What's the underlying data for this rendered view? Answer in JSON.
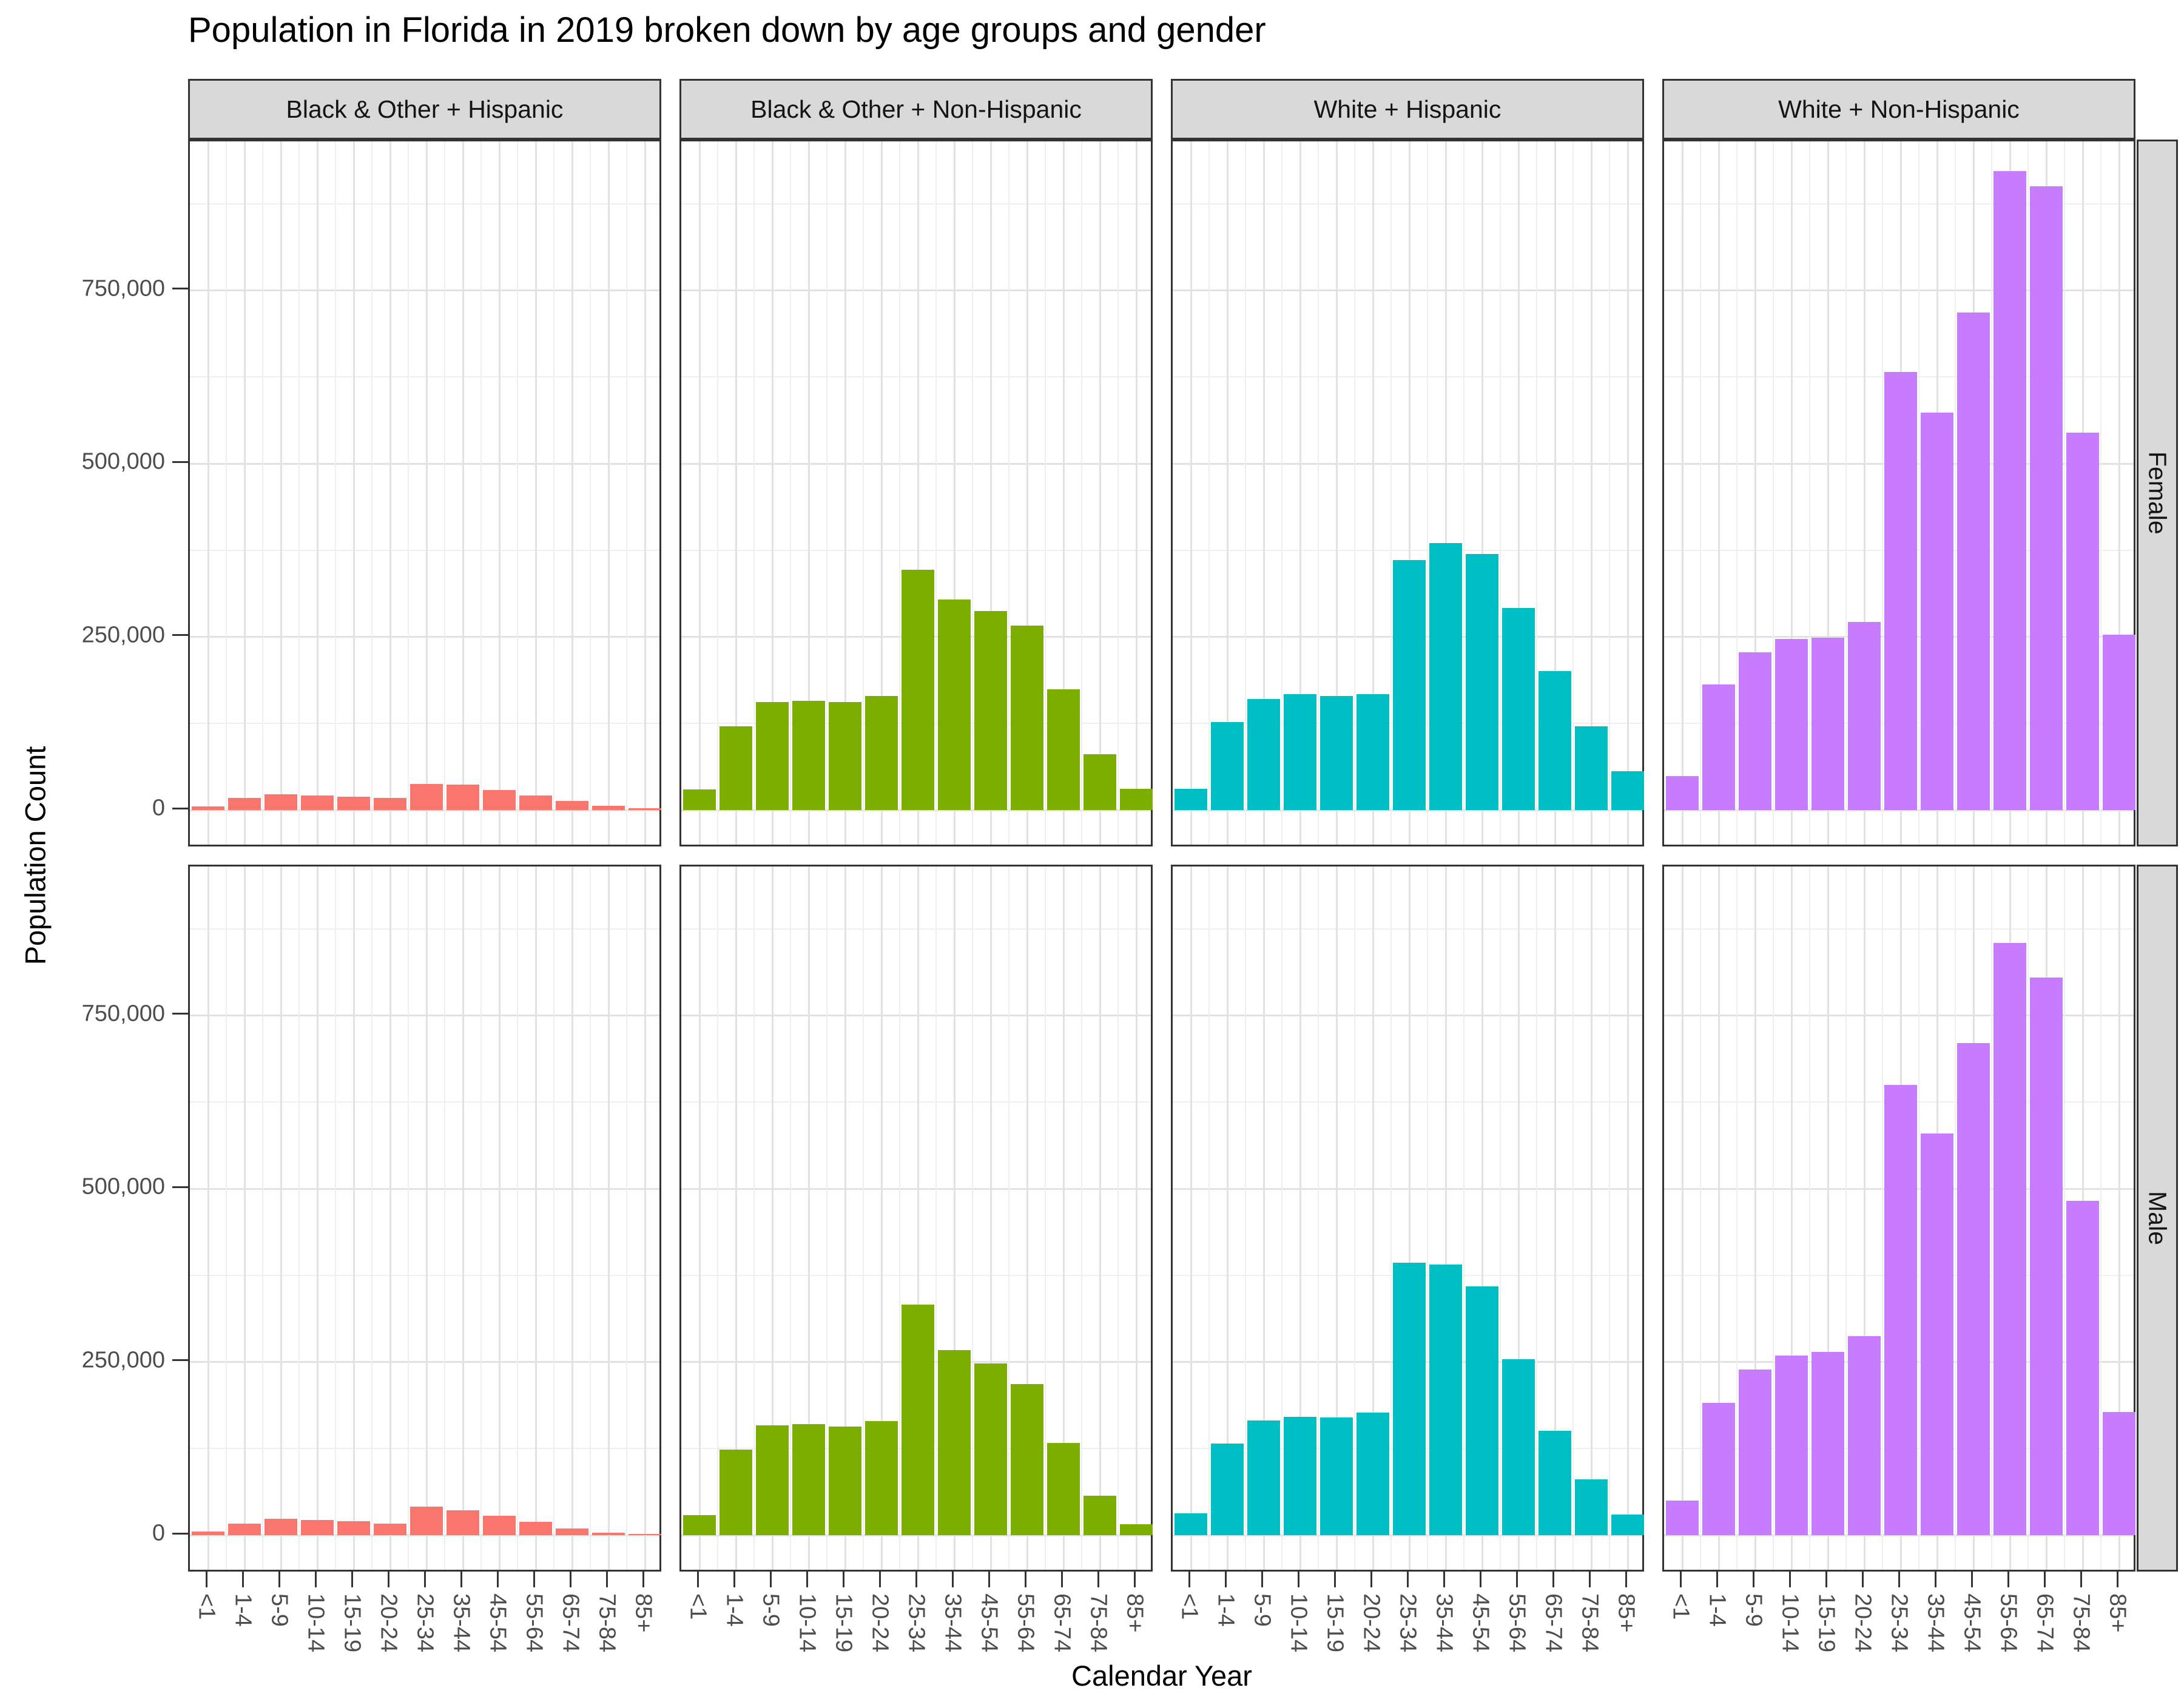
{
  "title": "Population in Florida in 2019 broken down by age groups and gender",
  "chart_data": {
    "type": "bar",
    "title": "Population in Florida in 2019 broken down by age groups and gender",
    "xlabel": "Calendar Year",
    "ylabel": "Population Count",
    "categories": [
      "<1",
      "1-4",
      "5-9",
      "10-14",
      "15-19",
      "20-24",
      "25-34",
      "35-44",
      "45-54",
      "55-64",
      "65-74",
      "75-84",
      "85+"
    ],
    "col_facets": [
      "Black & Other + Hispanic",
      "Black & Other + Non-Hispanic",
      "White + Hispanic",
      "White + Non-Hispanic"
    ],
    "row_facets": [
      "Female",
      "Male"
    ],
    "facet_colors": [
      "#F8766D",
      "#7CAE00",
      "#00BFC4",
      "#C77CFF"
    ],
    "legend_position": "none",
    "grid": true,
    "ylim": [
      -55000,
      965000
    ],
    "y_ticks": [
      {
        "value": 0,
        "label": "0"
      },
      {
        "value": 250000,
        "label": "250,000"
      },
      {
        "value": 500000,
        "label": "500,000"
      },
      {
        "value": 750000,
        "label": "750,000"
      }
    ],
    "y_minor_ticks": [
      125000,
      375000,
      625000,
      875000
    ],
    "series": [
      {
        "row": "Female",
        "col": "Black & Other + Hispanic",
        "values": [
          5000,
          18000,
          23000,
          21000,
          19000,
          18000,
          38000,
          37000,
          29000,
          21000,
          13000,
          6000,
          2500
        ]
      },
      {
        "row": "Female",
        "col": "Black & Other + Non-Hispanic",
        "values": [
          30000,
          121000,
          156000,
          158000,
          156000,
          165000,
          347000,
          304000,
          287000,
          266000,
          174000,
          81000,
          31000
        ]
      },
      {
        "row": "Female",
        "col": "White + Hispanic",
        "values": [
          31000,
          127000,
          160000,
          167000,
          165000,
          167000,
          361000,
          385000,
          370000,
          292000,
          201000,
          121000,
          56000
        ]
      },
      {
        "row": "Female",
        "col": "White + Non-Hispanic",
        "values": [
          49000,
          181000,
          228000,
          247000,
          249000,
          272000,
          632000,
          574000,
          718000,
          922000,
          900000,
          545000,
          253000
        ]
      },
      {
        "row": "Male",
        "col": "Black & Other + Hispanic",
        "values": [
          5000,
          17000,
          24000,
          22000,
          20000,
          17000,
          41000,
          36000,
          28000,
          19000,
          10000,
          4000,
          1500
        ]
      },
      {
        "row": "Male",
        "col": "Black & Other + Non-Hispanic",
        "values": [
          29000,
          124000,
          159000,
          160000,
          157000,
          165000,
          333000,
          267000,
          248000,
          218000,
          133000,
          57000,
          16000
        ]
      },
      {
        "row": "Male",
        "col": "White + Hispanic",
        "values": [
          32000,
          132000,
          166000,
          171000,
          170000,
          177000,
          393000,
          391000,
          359000,
          254000,
          151000,
          81000,
          30000
        ]
      },
      {
        "row": "Male",
        "col": "White + Non-Hispanic",
        "values": [
          50000,
          191000,
          239000,
          259000,
          265000,
          287000,
          650000,
          580000,
          710000,
          855000,
          805000,
          483000,
          178000
        ]
      }
    ]
  },
  "colors": {
    "strip_background": "#d9d9d9",
    "panel_border": "#333333",
    "grid_major": "#e2e2e2",
    "grid_minor": "#efefef",
    "tick_text": "#4d4d4d",
    "title_text": "#000000"
  }
}
